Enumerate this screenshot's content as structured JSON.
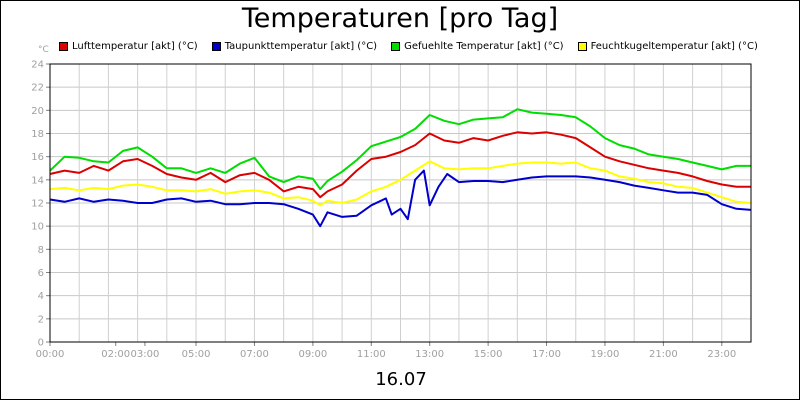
{
  "chart_data": {
    "type": "line",
    "title": "Temperaturen [pro Tag]",
    "date": "16.07",
    "ylabel": "°C",
    "xlabel": "",
    "ylim": [
      0,
      24
    ],
    "xlim": [
      0,
      24
    ],
    "yticks": [
      0,
      2,
      4,
      6,
      8,
      10,
      12,
      14,
      16,
      18,
      20,
      22,
      24
    ],
    "xticks": [
      {
        "x": 0,
        "label": "00:00"
      },
      {
        "x": 2.25,
        "label": "02:00"
      },
      {
        "x": 3.25,
        "label": "03:00"
      },
      {
        "x": 5,
        "label": "05:00"
      },
      {
        "x": 7,
        "label": "07:00"
      },
      {
        "x": 9,
        "label": "09:00"
      },
      {
        "x": 11,
        "label": "11:00"
      },
      {
        "x": 13,
        "label": "13:00"
      },
      {
        "x": 15,
        "label": "15:00"
      },
      {
        "x": 17,
        "label": "17:00"
      },
      {
        "x": 19,
        "label": "19:00"
      },
      {
        "x": 21,
        "label": "21:00"
      },
      {
        "x": 23,
        "label": "23:00"
      }
    ],
    "grid": true,
    "legend_position": "top",
    "series": [
      {
        "name": "Lufttemperatur [akt] (°C)",
        "color": "#dd0000",
        "points": [
          [
            0,
            14.5
          ],
          [
            0.5,
            14.8
          ],
          [
            1,
            14.6
          ],
          [
            1.5,
            15.2
          ],
          [
            2,
            14.8
          ],
          [
            2.5,
            15.6
          ],
          [
            3,
            15.8
          ],
          [
            3.5,
            15.2
          ],
          [
            4,
            14.5
          ],
          [
            4.5,
            14.2
          ],
          [
            5,
            14.0
          ],
          [
            5.5,
            14.6
          ],
          [
            6,
            13.8
          ],
          [
            6.5,
            14.4
          ],
          [
            7,
            14.6
          ],
          [
            7.5,
            14.0
          ],
          [
            8,
            13.0
          ],
          [
            8.5,
            13.4
          ],
          [
            9,
            13.2
          ],
          [
            9.25,
            12.5
          ],
          [
            9.5,
            13.0
          ],
          [
            10,
            13.6
          ],
          [
            10.5,
            14.8
          ],
          [
            11,
            15.8
          ],
          [
            11.5,
            16.0
          ],
          [
            12,
            16.4
          ],
          [
            12.5,
            17.0
          ],
          [
            13,
            18.0
          ],
          [
            13.5,
            17.4
          ],
          [
            14,
            17.2
          ],
          [
            14.5,
            17.6
          ],
          [
            15,
            17.4
          ],
          [
            15.5,
            17.8
          ],
          [
            16,
            18.1
          ],
          [
            16.5,
            18.0
          ],
          [
            17,
            18.1
          ],
          [
            17.5,
            17.9
          ],
          [
            18,
            17.6
          ],
          [
            18.5,
            16.8
          ],
          [
            19,
            16.0
          ],
          [
            19.5,
            15.6
          ],
          [
            20,
            15.3
          ],
          [
            20.5,
            15.0
          ],
          [
            21,
            14.8
          ],
          [
            21.5,
            14.6
          ],
          [
            22,
            14.3
          ],
          [
            22.5,
            13.9
          ],
          [
            23,
            13.6
          ],
          [
            23.5,
            13.4
          ],
          [
            24,
            13.4
          ]
        ]
      },
      {
        "name": "Taupunkttemperatur [akt] (°C)",
        "color": "#0000cc",
        "points": [
          [
            0,
            12.3
          ],
          [
            0.5,
            12.1
          ],
          [
            1,
            12.4
          ],
          [
            1.5,
            12.1
          ],
          [
            2,
            12.3
          ],
          [
            2.5,
            12.2
          ],
          [
            3,
            12.0
          ],
          [
            3.5,
            12.0
          ],
          [
            4,
            12.3
          ],
          [
            4.5,
            12.4
          ],
          [
            5,
            12.1
          ],
          [
            5.5,
            12.2
          ],
          [
            6,
            11.9
          ],
          [
            6.5,
            11.9
          ],
          [
            7,
            12.0
          ],
          [
            7.5,
            12.0
          ],
          [
            8,
            11.9
          ],
          [
            8.5,
            11.5
          ],
          [
            9,
            11.0
          ],
          [
            9.25,
            10.0
          ],
          [
            9.5,
            11.2
          ],
          [
            10,
            10.8
          ],
          [
            10.5,
            10.9
          ],
          [
            11,
            11.8
          ],
          [
            11.5,
            12.4
          ],
          [
            11.7,
            11.0
          ],
          [
            12,
            11.5
          ],
          [
            12.25,
            10.6
          ],
          [
            12.5,
            14.0
          ],
          [
            12.8,
            14.8
          ],
          [
            13,
            11.8
          ],
          [
            13.3,
            13.4
          ],
          [
            13.6,
            14.5
          ],
          [
            14,
            13.8
          ],
          [
            14.5,
            13.9
          ],
          [
            15,
            13.9
          ],
          [
            15.5,
            13.8
          ],
          [
            16,
            14.0
          ],
          [
            16.5,
            14.2
          ],
          [
            17,
            14.3
          ],
          [
            17.5,
            14.3
          ],
          [
            18,
            14.3
          ],
          [
            18.5,
            14.2
          ],
          [
            19,
            14.0
          ],
          [
            19.5,
            13.8
          ],
          [
            20,
            13.5
          ],
          [
            20.5,
            13.3
          ],
          [
            21,
            13.1
          ],
          [
            21.5,
            12.9
          ],
          [
            22,
            12.9
          ],
          [
            22.5,
            12.7
          ],
          [
            23,
            11.9
          ],
          [
            23.5,
            11.5
          ],
          [
            24,
            11.4
          ]
        ]
      },
      {
        "name": "Gefuehlte Temperatur [akt] (°C)",
        "color": "#00dd00",
        "points": [
          [
            0,
            14.8
          ],
          [
            0.5,
            16.0
          ],
          [
            1,
            15.9
          ],
          [
            1.5,
            15.6
          ],
          [
            2,
            15.5
          ],
          [
            2.5,
            16.5
          ],
          [
            3,
            16.8
          ],
          [
            3.5,
            16.0
          ],
          [
            4,
            15.0
          ],
          [
            4.5,
            15.0
          ],
          [
            5,
            14.6
          ],
          [
            5.5,
            15.0
          ],
          [
            6,
            14.6
          ],
          [
            6.5,
            15.4
          ],
          [
            7,
            15.9
          ],
          [
            7.5,
            14.3
          ],
          [
            8,
            13.8
          ],
          [
            8.5,
            14.3
          ],
          [
            9,
            14.1
          ],
          [
            9.25,
            13.2
          ],
          [
            9.5,
            13.9
          ],
          [
            10,
            14.7
          ],
          [
            10.5,
            15.7
          ],
          [
            11,
            16.9
          ],
          [
            11.5,
            17.3
          ],
          [
            12,
            17.7
          ],
          [
            12.5,
            18.4
          ],
          [
            13,
            19.6
          ],
          [
            13.5,
            19.1
          ],
          [
            14,
            18.8
          ],
          [
            14.5,
            19.2
          ],
          [
            15,
            19.3
          ],
          [
            15.5,
            19.4
          ],
          [
            16,
            20.1
          ],
          [
            16.5,
            19.8
          ],
          [
            17,
            19.7
          ],
          [
            17.5,
            19.6
          ],
          [
            18,
            19.4
          ],
          [
            18.5,
            18.6
          ],
          [
            19,
            17.6
          ],
          [
            19.5,
            17.0
          ],
          [
            20,
            16.7
          ],
          [
            20.5,
            16.2
          ],
          [
            21,
            16.0
          ],
          [
            21.5,
            15.8
          ],
          [
            22,
            15.5
          ],
          [
            22.5,
            15.2
          ],
          [
            23,
            14.9
          ],
          [
            23.5,
            15.2
          ],
          [
            24,
            15.2
          ]
        ]
      },
      {
        "name": "Feuchtkugeltemperatur [akt] (°C)",
        "color": "#ffff00",
        "points": [
          [
            0,
            13.2
          ],
          [
            0.5,
            13.3
          ],
          [
            1,
            13.1
          ],
          [
            1.5,
            13.3
          ],
          [
            2,
            13.2
          ],
          [
            2.5,
            13.5
          ],
          [
            3,
            13.6
          ],
          [
            3.5,
            13.4
          ],
          [
            4,
            13.1
          ],
          [
            4.5,
            13.1
          ],
          [
            5,
            13.0
          ],
          [
            5.5,
            13.2
          ],
          [
            6,
            12.8
          ],
          [
            6.5,
            13.0
          ],
          [
            7,
            13.1
          ],
          [
            7.5,
            12.9
          ],
          [
            8,
            12.4
          ],
          [
            8.5,
            12.5
          ],
          [
            9,
            12.2
          ],
          [
            9.25,
            11.8
          ],
          [
            9.5,
            12.2
          ],
          [
            10,
            12.0
          ],
          [
            10.5,
            12.3
          ],
          [
            11,
            13.0
          ],
          [
            11.5,
            13.4
          ],
          [
            12,
            14.0
          ],
          [
            12.5,
            14.8
          ],
          [
            13,
            15.6
          ],
          [
            13.5,
            15.0
          ],
          [
            14,
            14.9
          ],
          [
            14.5,
            15.0
          ],
          [
            15,
            15.0
          ],
          [
            15.5,
            15.2
          ],
          [
            16,
            15.4
          ],
          [
            16.5,
            15.5
          ],
          [
            17,
            15.5
          ],
          [
            17.5,
            15.4
          ],
          [
            18,
            15.5
          ],
          [
            18.5,
            15.0
          ],
          [
            19,
            14.8
          ],
          [
            19.5,
            14.3
          ],
          [
            20,
            14.1
          ],
          [
            20.5,
            13.8
          ],
          [
            21,
            13.7
          ],
          [
            21.5,
            13.4
          ],
          [
            22,
            13.3
          ],
          [
            22.5,
            12.9
          ],
          [
            23,
            12.5
          ],
          [
            23.5,
            12.1
          ],
          [
            24,
            12.0
          ]
        ]
      }
    ]
  }
}
